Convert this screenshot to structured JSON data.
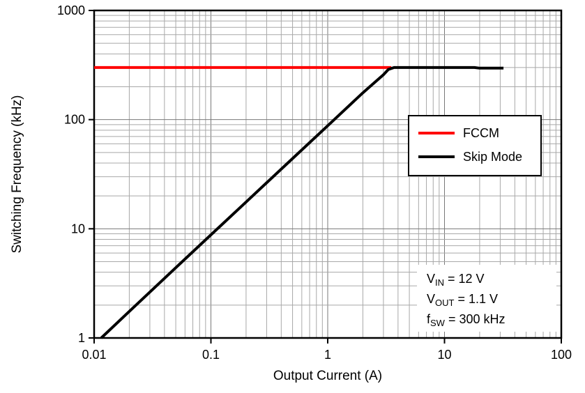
{
  "chart_data": {
    "type": "line",
    "title": "",
    "xlabel": "Output Current (A)",
    "ylabel": "Switching Frequency (kHz)",
    "x_scale": "log",
    "y_scale": "log",
    "xlim": [
      0.01,
      100
    ],
    "ylim": [
      1,
      1000
    ],
    "x_ticks": [
      0.01,
      0.1,
      1,
      10,
      100
    ],
    "x_tick_labels": [
      "0.01",
      "0.1",
      "1",
      "10",
      "100"
    ],
    "y_ticks": [
      1,
      10,
      100,
      1000
    ],
    "y_tick_labels": [
      "1",
      "10",
      "100",
      "1000"
    ],
    "grid": {
      "major": true,
      "minor": true
    },
    "legend": {
      "position": "upper-right"
    },
    "series": [
      {
        "name": "FCCM",
        "color": "#ff0000",
        "line_width": 4,
        "points": [
          [
            0.01,
            300
          ],
          [
            3.5,
            300
          ]
        ]
      },
      {
        "name": "Skip Mode",
        "color": "#000000",
        "line_width": 4,
        "points": [
          [
            0.0115,
            1
          ],
          [
            0.02,
            1.75
          ],
          [
            0.05,
            4.4
          ],
          [
            0.1,
            8.8
          ],
          [
            0.2,
            17.6
          ],
          [
            0.5,
            44
          ],
          [
            1,
            88
          ],
          [
            2,
            176
          ],
          [
            3,
            258
          ],
          [
            3.3,
            288
          ],
          [
            3.7,
            300
          ],
          [
            18,
            300
          ],
          [
            20,
            296
          ],
          [
            32,
            296
          ]
        ]
      }
    ],
    "annotations": {
      "lines": [
        {
          "pre": "V",
          "sub": "IN",
          "post": " = 12 V"
        },
        {
          "pre": "V",
          "sub": "OUT",
          "post": " = 1.1 V"
        },
        {
          "pre": "f",
          "sub": "SW",
          "post": " = 300 kHz"
        }
      ]
    }
  },
  "style": {
    "grid_major_color": "#787878",
    "grid_minor_color": "#a8a8a8",
    "frame_color": "#000000",
    "text_color": "#000000",
    "background": "#ffffff"
  }
}
